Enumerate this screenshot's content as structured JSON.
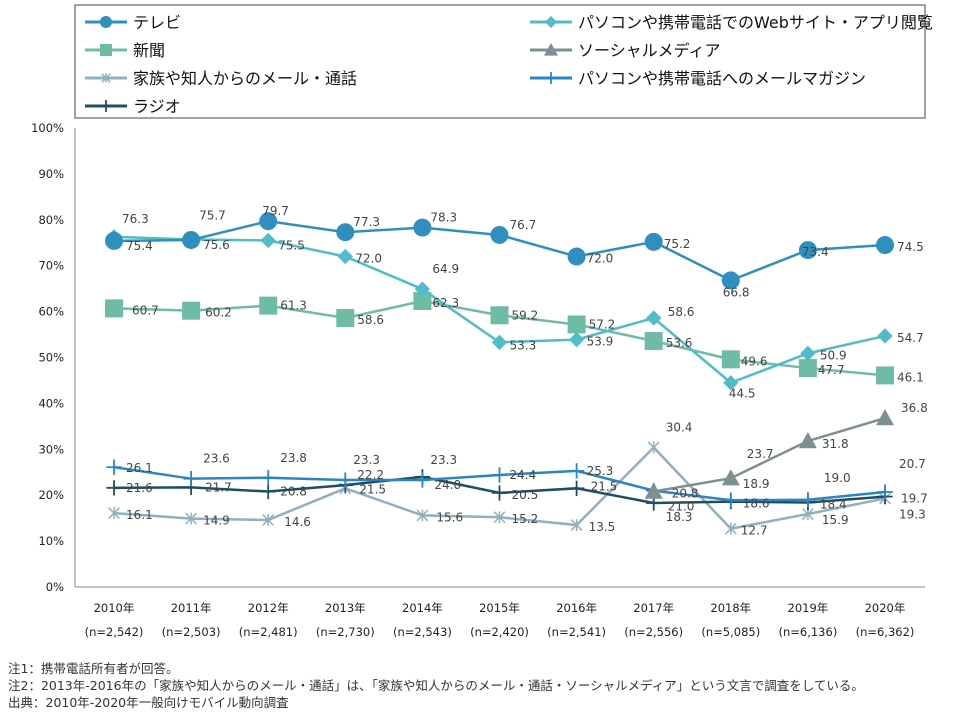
{
  "chart_data": {
    "type": "line",
    "ylim": [
      0,
      100
    ],
    "y_ticks": [
      "0%",
      "10%",
      "20%",
      "30%",
      "40%",
      "50%",
      "60%",
      "70%",
      "80%",
      "90%",
      "100%"
    ],
    "categories": [
      "2010年",
      "2011年",
      "2012年",
      "2013年",
      "2014年",
      "2015年",
      "2016年",
      "2017年",
      "2018年",
      "2019年",
      "2020年"
    ],
    "category_samples": [
      "(n=2,542)",
      "(n=2,503)",
      "(n=2,481)",
      "(n=2,730)",
      "(n=2,543)",
      "(n=2,420)",
      "(n=2,541)",
      "(n=2,556)",
      "(n=5,085)",
      "(n=6,136)",
      "(n=6,362)"
    ],
    "grid": false,
    "legend_position": "top",
    "series": [
      {
        "name": "テレビ",
        "marker": "circle",
        "color": "#2f8fbf",
        "values": [
          75.4,
          75.6,
          79.7,
          77.3,
          78.3,
          76.7,
          72.0,
          75.2,
          66.8,
          73.4,
          74.5
        ]
      },
      {
        "name": "パソコンや携帯電話でのWebサイト・アプリ閲覧",
        "marker": "diamond",
        "color": "#4fbcc8",
        "values": [
          76.3,
          75.7,
          75.5,
          72.0,
          64.9,
          53.3,
          53.9,
          58.6,
          44.5,
          50.9,
          54.7
        ]
      },
      {
        "name": "新聞",
        "marker": "square",
        "color": "#6fbca6",
        "values": [
          60.7,
          60.2,
          61.3,
          58.6,
          62.3,
          59.2,
          57.2,
          53.6,
          49.6,
          47.7,
          46.1
        ]
      },
      {
        "name": "ソーシャルメディア",
        "marker": "triangle",
        "color": "#7e8f92",
        "values": [
          null,
          null,
          null,
          null,
          null,
          null,
          null,
          20.8,
          23.7,
          31.8,
          36.8
        ]
      },
      {
        "name": "家族や知人からのメール・通話",
        "marker": "asterisk",
        "color": "#8fb0bc",
        "values": [
          16.1,
          14.9,
          14.6,
          21.5,
          15.6,
          15.2,
          13.5,
          30.4,
          12.7,
          15.9,
          19.3
        ]
      },
      {
        "name": "パソコンや携帯電話へのメールマガジン",
        "marker": "plus",
        "color": "#2a85c2",
        "values": [
          26.1,
          23.6,
          23.8,
          23.3,
          23.3,
          24.4,
          25.3,
          21.0,
          18.9,
          19.0,
          20.7
        ]
      },
      {
        "name": "ラジオ",
        "marker": "plus",
        "color": "#1f4e63",
        "values": [
          21.6,
          21.7,
          20.8,
          22.2,
          24.0,
          20.5,
          21.5,
          18.3,
          18.6,
          18.4,
          19.7
        ]
      }
    ]
  },
  "notes": [
    "注1：携帯電話所有者が回答。",
    "注2：2013年-2016年の「家族や知人からのメール・通話」は、「家族や知人からのメール・通話・ソーシャルメディア」という文言で調査をしている。",
    "出典：2010年-2020年一般向けモバイル動向調査"
  ]
}
